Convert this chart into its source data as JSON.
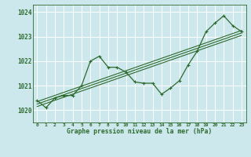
{
  "title": "Graphe pression niveau de la mer (hPa)",
  "background_color": "#cce8ec",
  "grid_color": "#ffffff",
  "line_color": "#2d6a2d",
  "x_labels": [
    "0",
    "1",
    "2",
    "3",
    "4",
    "5",
    "6",
    "7",
    "8",
    "9",
    "10",
    "11",
    "12",
    "13",
    "14",
    "15",
    "16",
    "17",
    "18",
    "19",
    "20",
    "21",
    "22",
    "23"
  ],
  "ylim": [
    1019.5,
    1024.3
  ],
  "yticks": [
    1020,
    1021,
    1022,
    1023,
    1024
  ],
  "series1": [
    1020.4,
    1020.1,
    1020.5,
    1020.6,
    1020.6,
    1021.0,
    1022.0,
    1022.2,
    1021.75,
    1021.75,
    1021.55,
    1021.15,
    1021.1,
    1021.1,
    1020.65,
    1020.9,
    1021.2,
    1021.85,
    1022.4,
    1023.2,
    1023.55,
    1023.85,
    1023.45,
    1023.2
  ],
  "trend_lines": [
    {
      "x": [
        0,
        23
      ],
      "y": [
        1020.35,
        1023.25
      ]
    },
    {
      "x": [
        0,
        23
      ],
      "y": [
        1020.25,
        1023.15
      ]
    },
    {
      "x": [
        0,
        23
      ],
      "y": [
        1020.15,
        1023.05
      ]
    }
  ],
  "figsize": [
    3.2,
    2.0
  ],
  "dpi": 100
}
